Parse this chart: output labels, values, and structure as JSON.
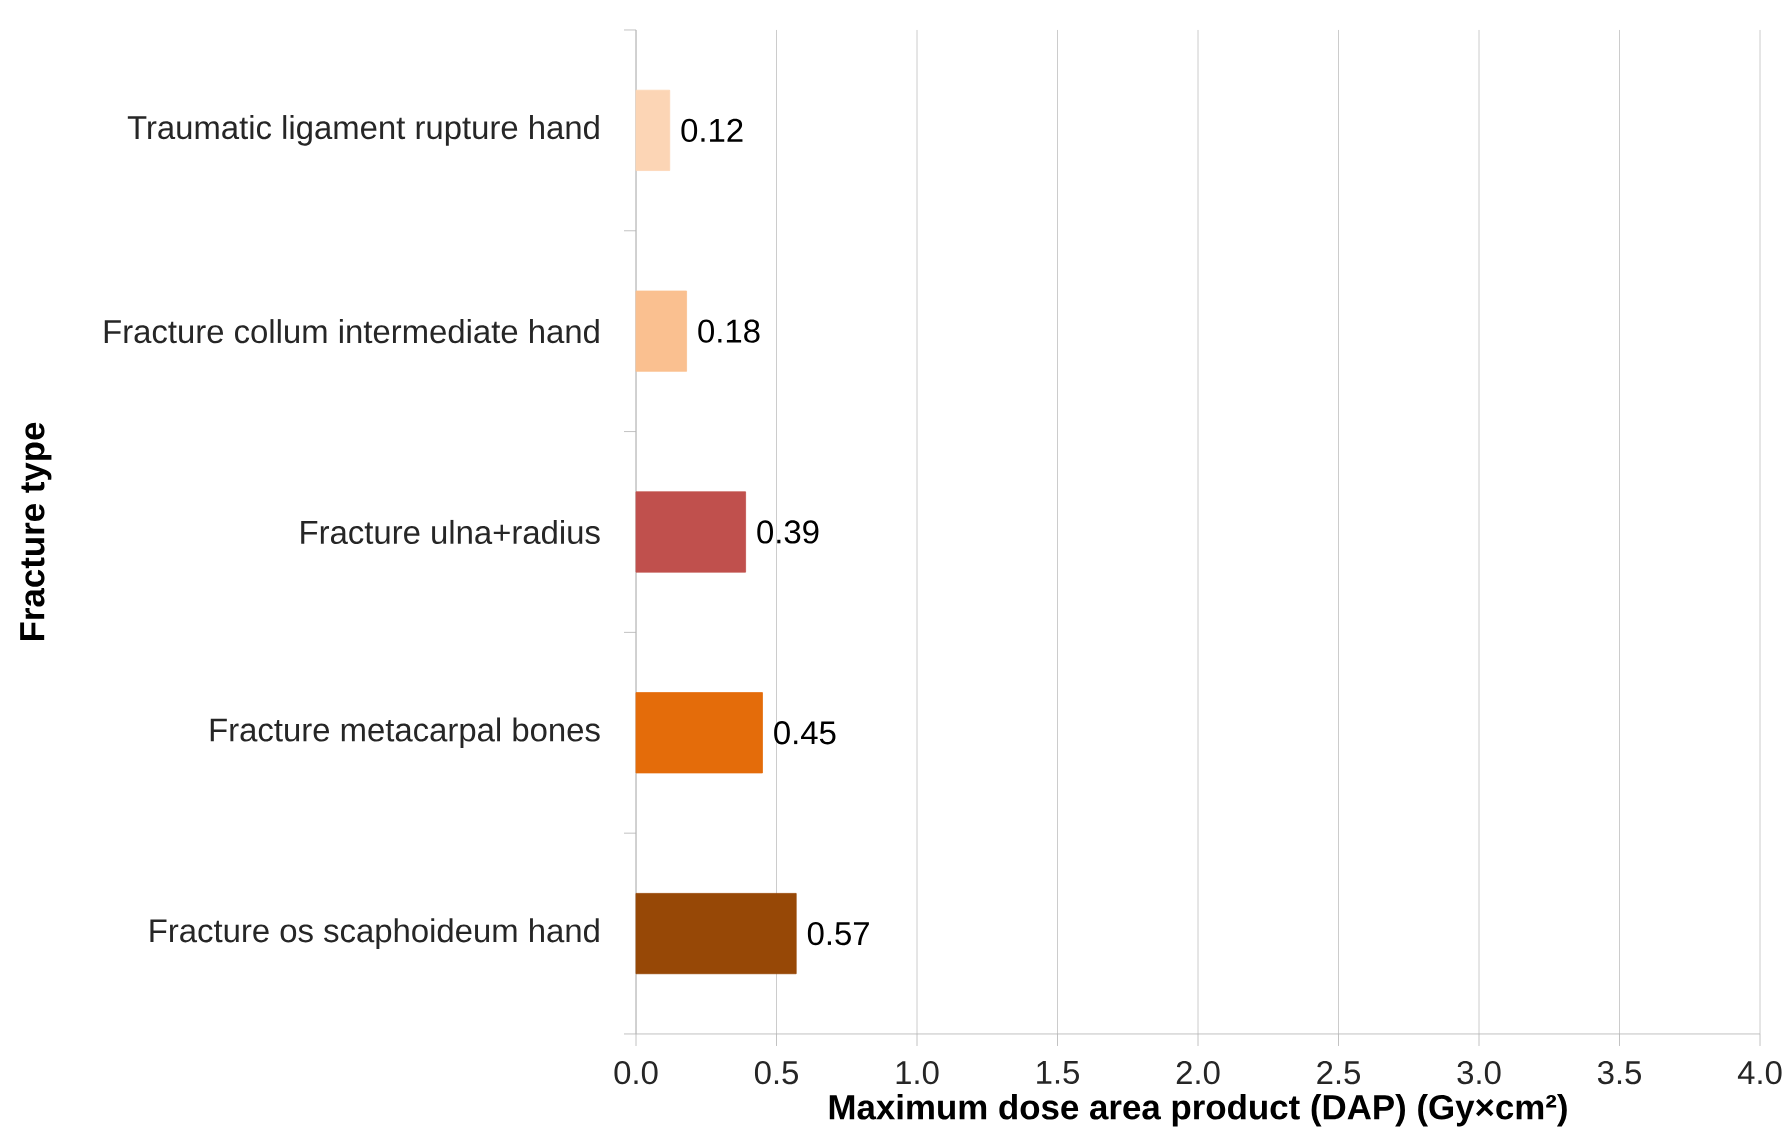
{
  "chart_data": {
    "type": "bar",
    "orientation": "horizontal",
    "categories": [
      "Traumatic ligament rupture hand",
      "Fracture collum intermediate hand",
      "Fracture ulna+radius",
      "Fracture metacarpal bones",
      "Fracture os scaphoideum hand"
    ],
    "values": [
      0.12,
      0.18,
      0.39,
      0.45,
      0.57
    ],
    "colors": [
      "#fcd5b5",
      "#fac090",
      "#c0504d",
      "#e46c0a",
      "#974806"
    ],
    "xlabel": "Maximum dose area product (DAP) (Gy×cm²)",
    "ylabel": "Fracture type",
    "xlim": [
      0,
      4
    ],
    "xticks": [
      {
        "value": 0,
        "label": "0.0"
      },
      0.5,
      {
        "value": 1,
        "label": "1.0"
      },
      1.5,
      {
        "value": 2,
        "label": "2.0"
      },
      2.5,
      {
        "value": 3,
        "label": "3.0"
      },
      3.5,
      {
        "value": 4,
        "label": "4.0"
      }
    ],
    "grid": "x",
    "data_labels": true
  }
}
